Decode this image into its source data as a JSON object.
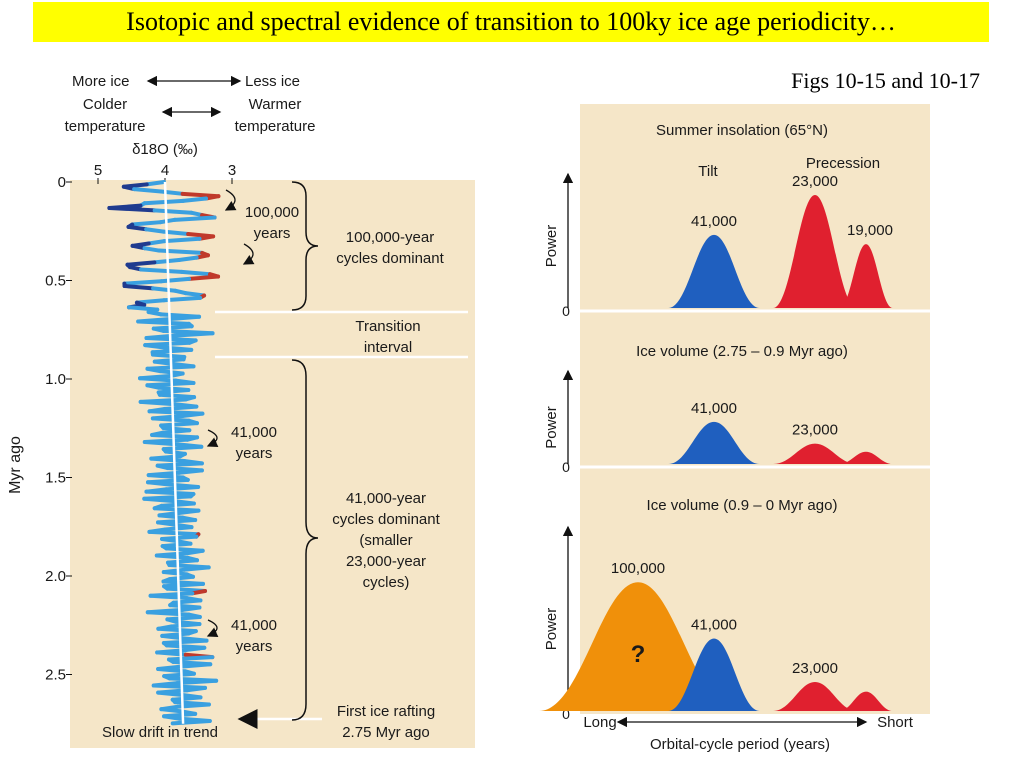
{
  "slide_title": "Isotopic and spectral evidence of transition to 100ky ice age periodicity…",
  "figure_ref": "Figs 10-15 and 10-17",
  "chart_data": [
    {
      "type": "line",
      "title": "",
      "header": {
        "more_ice": "More ice",
        "less_ice": "Less ice",
        "colder": "Colder",
        "colder2": "temperature",
        "warmer": "Warmer",
        "warmer2": "temperature",
        "xlabel": "δ18O (‰)"
      },
      "xlabel": "δ18O (‰)",
      "ylabel": "Myr ago",
      "x_ticks": [
        "5",
        "4",
        "3"
      ],
      "xlim": [
        5.0,
        3.0
      ],
      "y_ticks": [
        "0",
        "0.5",
        "1.0",
        "1.5",
        "2.0",
        "2.5"
      ],
      "ylim": [
        0,
        2.8
      ],
      "annotations": {
        "a1_line1": "100,000",
        "a1_line2": "years",
        "b1_line1": "100,000-year",
        "b1_line2": "cycles dominant",
        "t_line1": "Transition",
        "t_line2": "interval",
        "a2_line1": "41,000",
        "a2_line2": "years",
        "b2_line1": "41,000-year",
        "b2_line2": "cycles dominant",
        "b2_line3": "(smaller",
        "b2_line4": "23,000-year",
        "b2_line5": "cycles)",
        "a3_line1": "41,000",
        "a3_line2": "years",
        "first_line1": "First ice rafting",
        "first_line2": "2.75 Myr ago",
        "drift": "Slow drift in trend"
      },
      "trend": {
        "start": [
          4.0,
          0.0
        ],
        "end": [
          3.73,
          2.75
        ]
      },
      "colors": {
        "cold": "#1f3b8f",
        "mid": "#3aa0e0",
        "warm": "#c0392b",
        "panel": "#f5e6c8",
        "trend": "#ffffff"
      }
    },
    {
      "type": "area",
      "title": "Summer insolation (65°N)",
      "ylabel": "Power",
      "group_labels": [
        "Tilt",
        "Precession"
      ],
      "series": [
        {
          "name": "41,000",
          "period": 41000,
          "power": 0.55,
          "color": "#1f5fbf"
        },
        {
          "name": "23,000",
          "period": 23000,
          "power": 0.85,
          "color": "#e0202f"
        },
        {
          "name": "19,000",
          "period": 19000,
          "power": 0.48,
          "color": "#e0202f"
        }
      ]
    },
    {
      "type": "area",
      "title": "Ice volume (2.75 – 0.9 Myr ago)",
      "ylabel": "Power",
      "series": [
        {
          "name": "41,000",
          "period": 41000,
          "power": 0.62,
          "color": "#1f5fbf"
        },
        {
          "name": "23,000",
          "period": 23000,
          "power": 0.3,
          "color": "#e0202f"
        },
        {
          "name": "",
          "period": 19000,
          "power": 0.18,
          "color": "#e0202f"
        }
      ]
    },
    {
      "type": "area",
      "title": "Ice volume (0.9 – 0 Myr ago)",
      "ylabel": "Power",
      "xlabel": "Orbital-cycle period (years)",
      "x_end_labels": [
        "Long",
        "Short"
      ],
      "series": [
        {
          "name": "100,000",
          "period": 100000,
          "power": 0.8,
          "color": "#f0900a",
          "mark": "?"
        },
        {
          "name": "41,000",
          "period": 41000,
          "power": 0.45,
          "color": "#1f5fbf"
        },
        {
          "name": "23,000",
          "period": 23000,
          "power": 0.18,
          "color": "#e0202f"
        },
        {
          "name": "",
          "period": 19000,
          "power": 0.12,
          "color": "#e0202f"
        }
      ]
    }
  ]
}
